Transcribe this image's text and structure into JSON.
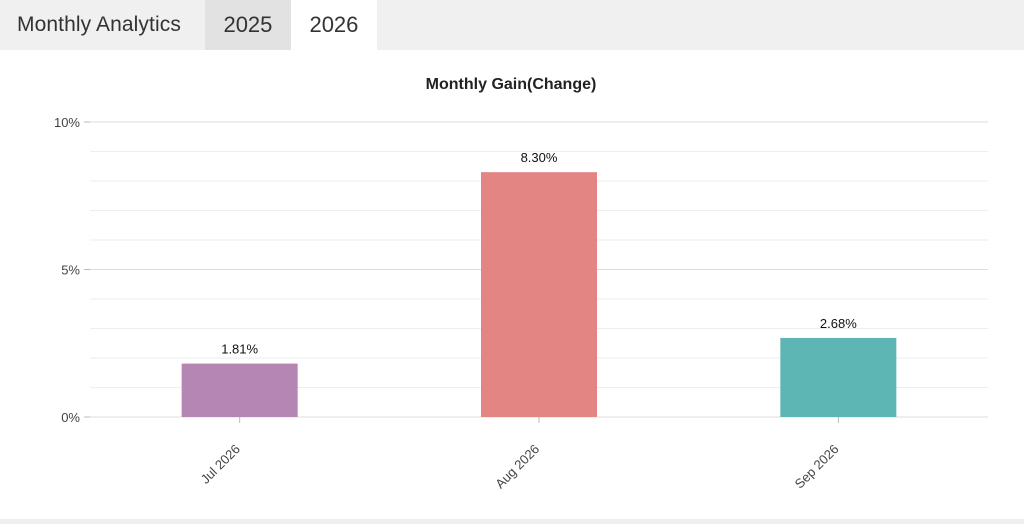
{
  "header": {
    "title": "Monthly Analytics",
    "tabs": [
      {
        "label": "2025",
        "active": false
      },
      {
        "label": "2026",
        "active": true
      }
    ]
  },
  "chart_data": {
    "type": "bar",
    "title": "Monthly Gain(Change)",
    "xlabel": "",
    "ylabel": "",
    "categories": [
      "Jul 2026",
      "Aug 2026",
      "Sep 2026"
    ],
    "values": [
      1.81,
      8.3,
      2.68
    ],
    "value_labels": [
      "1.81%",
      "8.30%",
      "2.68%"
    ],
    "colors": [
      "#b585b4",
      "#e28583",
      "#5db5b4"
    ],
    "ylim": [
      0,
      10
    ],
    "yticks": [
      0,
      5,
      10
    ],
    "ytick_labels": [
      "0%",
      "5%",
      "10%"
    ],
    "grid": true
  }
}
